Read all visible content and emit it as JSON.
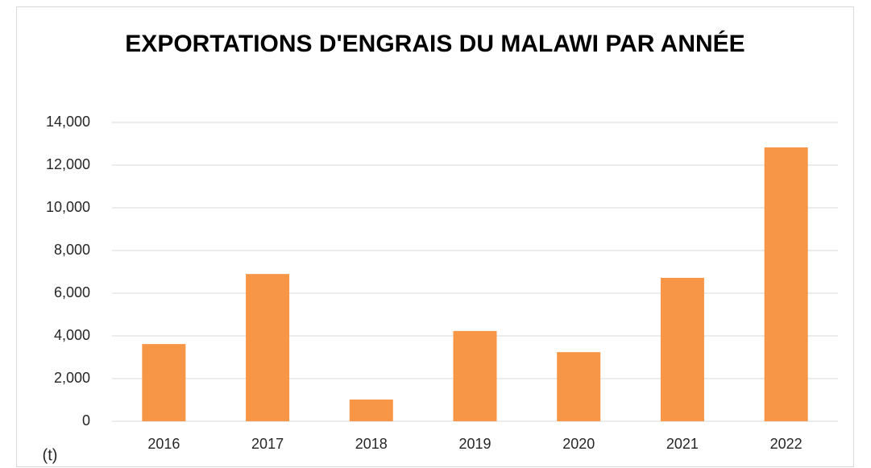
{
  "chart_data": {
    "type": "bar",
    "title": "EXPORTATIONS D'ENGRAIS DU MALAWI PAR ANNÉE",
    "y_label": "(t)",
    "categories": [
      "2016",
      "2017",
      "2018",
      "2019",
      "2020",
      "2021",
      "2022"
    ],
    "values": [
      3620,
      6900,
      1020,
      4230,
      3240,
      6720,
      12830
    ],
    "color": "#f79646",
    "ylim": [
      0,
      14000
    ],
    "yticks": [
      0,
      {
        "value": 2000,
        "label": "2,000"
      },
      {
        "value": 4000,
        "label": "4,000"
      },
      {
        "value": 6000,
        "label": "6,000"
      },
      {
        "value": 8000,
        "label": "8,000"
      },
      {
        "value": 10000,
        "label": "10,000"
      },
      {
        "value": 12000,
        "label": "12,000"
      },
      {
        "value": 14000,
        "label": "14,000"
      }
    ],
    "grid": true
  }
}
